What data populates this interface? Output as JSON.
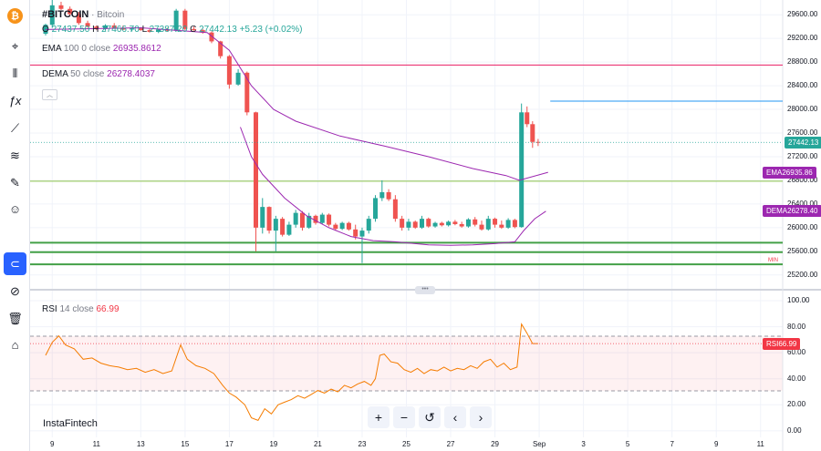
{
  "symbol": {
    "ticker": "#BITCOIN",
    "name": "Bitcoin"
  },
  "ohlc": {
    "o_label": "O",
    "o": "27437.50",
    "h_label": "H",
    "h": "27466.70",
    "l_label": "L",
    "l": "27387.20",
    "c_label": "C",
    "c": "27442.13",
    "change": "+5.23 (+0.02%)"
  },
  "ema": {
    "label": "EMA",
    "params": "100 0 close",
    "value": "26935.8612",
    "tag": "26935.86",
    "color": "#9c27b0"
  },
  "dema": {
    "label": "DEMA",
    "params": "50 close",
    "value": "26278.4037",
    "tag": "26278.40",
    "color": "#9c27b0"
  },
  "rsi": {
    "label": "RSI",
    "params": "14 close",
    "value": "66.99",
    "tag": "66.99",
    "color": "#f23645"
  },
  "price_tag": "27442.13",
  "min_label": "MIN",
  "brand": "InstaFintech",
  "collapse_icon": "chevron-up",
  "handle_icon": "drag-dots",
  "colors": {
    "up": "#26a69a",
    "down": "#ef5350",
    "pink_line": "#e91e63",
    "blue_line": "#2196f3",
    "green_level": "#43a047"
  },
  "nav_buttons": [
    "+",
    "−",
    "↺",
    "‹",
    "›"
  ],
  "toolbar_icons": [
    "bitcoin-icon",
    "cursor-icon",
    "candles-icon",
    "fx-icon",
    "trend-line-icon",
    "fib-icon",
    "brush-icon",
    "emoji-icon",
    "magnet-icon",
    "eye-off-icon",
    "trash-icon",
    "snapshot-icon"
  ],
  "chart_data": {
    "type": "candlestick",
    "price_axis": {
      "ticks": [
        "29600.00",
        "29200.00",
        "28800.00",
        "28400.00",
        "28000.00",
        "27600.00",
        "27200.00",
        "26800.00",
        "26400.00",
        "26000.00",
        "25600.00",
        "25200.00"
      ],
      "range": [
        24950,
        29850
      ]
    },
    "rsi_axis": {
      "ticks": [
        "100.00",
        "80.00",
        "60.00",
        "40.00",
        "20.00",
        "0.00"
      ],
      "range": [
        -5,
        107
      ],
      "upper_band": 70,
      "lower_band": 30
    },
    "x_axis": {
      "ticks": [
        "9",
        "11",
        "13",
        "15",
        "17",
        "19",
        "21",
        "23",
        "25",
        "27",
        "29",
        "Sep",
        "3",
        "5",
        "7",
        "9",
        "11"
      ]
    },
    "horizontal_levels": [
      {
        "price": 28750,
        "color": "#e91e63"
      },
      {
        "price": 26785,
        "color": "#8bc34a"
      },
      {
        "price": 25745,
        "color": "#43a047"
      },
      {
        "price": 25585,
        "color": "#43a047"
      },
      {
        "price": 25380,
        "color": "#43a047"
      }
    ],
    "blue_level": {
      "price": 28140,
      "from_x": 31.5
    },
    "candles": [
      [
        8.7,
        29280,
        29450,
        29250,
        29430
      ],
      [
        9.0,
        29430,
        29850,
        29380,
        29760
      ],
      [
        9.4,
        29760,
        29820,
        29680,
        29700
      ],
      [
        9.8,
        29700,
        29740,
        29580,
        29610
      ],
      [
        10.2,
        29610,
        29650,
        29430,
        29460
      ],
      [
        10.6,
        29460,
        29500,
        29380,
        29400
      ],
      [
        11.0,
        29400,
        29420,
        29340,
        29360
      ],
      [
        11.4,
        29360,
        29440,
        29330,
        29420
      ],
      [
        11.8,
        29420,
        29460,
        29370,
        29380
      ],
      [
        12.2,
        29380,
        29420,
        29340,
        29350
      ],
      [
        12.6,
        29350,
        29390,
        29320,
        29370
      ],
      [
        13.0,
        29370,
        29390,
        29330,
        29340
      ],
      [
        13.4,
        29340,
        29360,
        29300,
        29310
      ],
      [
        13.8,
        29310,
        29360,
        29290,
        29350
      ],
      [
        14.2,
        29350,
        29380,
        29320,
        29330
      ],
      [
        14.6,
        29330,
        29700,
        29320,
        29670
      ],
      [
        15.0,
        29670,
        29700,
        29340,
        29360
      ],
      [
        15.4,
        29360,
        29400,
        29330,
        29340
      ],
      [
        15.8,
        29340,
        29360,
        29280,
        29300
      ],
      [
        16.2,
        29300,
        29320,
        29120,
        29150
      ],
      [
        16.6,
        29150,
        29160,
        28860,
        28900
      ],
      [
        17.0,
        28900,
        28920,
        28350,
        28420
      ],
      [
        17.4,
        28420,
        28680,
        28400,
        28620
      ],
      [
        17.8,
        28620,
        28640,
        27900,
        27950
      ],
      [
        18.2,
        27950,
        27960,
        25600,
        26000
      ],
      [
        18.5,
        26000,
        26500,
        25900,
        26350
      ],
      [
        18.8,
        26350,
        26360,
        25900,
        25950
      ],
      [
        19.1,
        25950,
        26200,
        25600,
        26150
      ],
      [
        19.4,
        26150,
        26180,
        25850,
        25880
      ],
      [
        19.7,
        25880,
        26100,
        25860,
        26050
      ],
      [
        20.0,
        26050,
        26300,
        26000,
        26250
      ],
      [
        20.3,
        26250,
        26280,
        25950,
        26000
      ],
      [
        20.6,
        26000,
        26250,
        25980,
        26200
      ],
      [
        20.9,
        26200,
        26220,
        26050,
        26080
      ],
      [
        21.2,
        26080,
        26250,
        26060,
        26220
      ],
      [
        21.5,
        26220,
        26240,
        26020,
        26050
      ],
      [
        21.8,
        26050,
        26080,
        25950,
        25980
      ],
      [
        22.1,
        25980,
        26100,
        25960,
        26080
      ],
      [
        22.4,
        26080,
        26100,
        25950,
        25970
      ],
      [
        22.7,
        25970,
        26050,
        25800,
        25850
      ],
      [
        23.0,
        25850,
        26000,
        25400,
        25950
      ],
      [
        23.3,
        25950,
        26200,
        25900,
        26150
      ],
      [
        23.6,
        26150,
        26550,
        26100,
        26500
      ],
      [
        23.9,
        26500,
        26800,
        26450,
        26600
      ],
      [
        24.2,
        26600,
        26650,
        26450,
        26480
      ],
      [
        24.5,
        26480,
        26550,
        26100,
        26150
      ],
      [
        24.8,
        26150,
        26200,
        25950,
        26000
      ],
      [
        25.1,
        26000,
        26150,
        25950,
        26100
      ],
      [
        25.4,
        26100,
        26120,
        25980,
        26000
      ],
      [
        25.7,
        26000,
        26200,
        25980,
        26150
      ],
      [
        26.0,
        26150,
        26170,
        26000,
        26020
      ],
      [
        26.3,
        26020,
        26100,
        26000,
        26080
      ],
      [
        26.6,
        26080,
        26100,
        26020,
        26040
      ],
      [
        26.9,
        26040,
        26120,
        26020,
        26100
      ],
      [
        27.2,
        26100,
        26130,
        26040,
        26060
      ],
      [
        27.5,
        26060,
        26100,
        26000,
        26020
      ],
      [
        27.8,
        26020,
        26160,
        26000,
        26140
      ],
      [
        28.1,
        26140,
        26180,
        26020,
        26050
      ],
      [
        28.4,
        26050,
        26120,
        25950,
        25970
      ],
      [
        28.7,
        25970,
        26200,
        25950,
        26150
      ],
      [
        29.0,
        26150,
        26170,
        26000,
        26050
      ],
      [
        29.3,
        26050,
        26120,
        25980,
        26000
      ],
      [
        29.6,
        26000,
        26160,
        25980,
        26130
      ],
      [
        29.9,
        26130,
        26150,
        25990,
        26010
      ],
      [
        30.2,
        26010,
        28100,
        26000,
        27950
      ],
      [
        30.45,
        27950,
        28050,
        27700,
        27750
      ],
      [
        30.7,
        27750,
        27800,
        27350,
        27450
      ],
      [
        30.95,
        27450,
        27500,
        27380,
        27442
      ]
    ],
    "ema_line": [
      [
        8.7,
        29350
      ],
      [
        13,
        29380
      ],
      [
        16,
        29300
      ],
      [
        17,
        29000
      ],
      [
        18,
        28400
      ],
      [
        19,
        28000
      ],
      [
        20,
        27800
      ],
      [
        22,
        27550
      ],
      [
        24,
        27380
      ],
      [
        26,
        27200
      ],
      [
        28,
        27000
      ],
      [
        29.5,
        26880
      ],
      [
        30.1,
        26800
      ],
      [
        31.4,
        26936
      ]
    ],
    "dema_line": [
      [
        17.5,
        27700
      ],
      [
        18,
        27200
      ],
      [
        18.5,
        26900
      ],
      [
        19.5,
        26500
      ],
      [
        20.5,
        26200
      ],
      [
        21.5,
        26000
      ],
      [
        22.5,
        25850
      ],
      [
        23.5,
        25780
      ],
      [
        24.5,
        25760
      ],
      [
        26,
        25710
      ],
      [
        27,
        25700
      ],
      [
        28,
        25710
      ],
      [
        29,
        25730
      ],
      [
        29.9,
        25760
      ],
      [
        30.3,
        25950
      ],
      [
        30.8,
        26150
      ],
      [
        31.3,
        26278
      ]
    ],
    "rsi_line": [
      [
        8.7,
        58
      ],
      [
        9.0,
        68
      ],
      [
        9.3,
        73
      ],
      [
        9.6,
        66
      ],
      [
        10,
        63
      ],
      [
        10.4,
        55
      ],
      [
        10.8,
        56
      ],
      [
        11.2,
        52
      ],
      [
        11.6,
        50
      ],
      [
        12,
        49
      ],
      [
        12.4,
        47
      ],
      [
        12.8,
        48
      ],
      [
        13.2,
        45
      ],
      [
        13.6,
        47
      ],
      [
        14,
        44
      ],
      [
        14.4,
        46
      ],
      [
        14.8,
        66
      ],
      [
        15.1,
        55
      ],
      [
        15.5,
        50
      ],
      [
        15.9,
        48
      ],
      [
        16.3,
        44
      ],
      [
        16.7,
        35
      ],
      [
        17.0,
        29
      ],
      [
        17.3,
        26
      ],
      [
        17.7,
        20
      ],
      [
        18.0,
        10
      ],
      [
        18.3,
        8
      ],
      [
        18.6,
        17
      ],
      [
        18.9,
        13
      ],
      [
        19.2,
        20
      ],
      [
        19.5,
        22
      ],
      [
        19.8,
        24
      ],
      [
        20.1,
        27
      ],
      [
        20.4,
        25
      ],
      [
        20.7,
        28
      ],
      [
        21,
        31
      ],
      [
        21.3,
        29
      ],
      [
        21.6,
        32
      ],
      [
        21.9,
        30
      ],
      [
        22.2,
        35
      ],
      [
        22.5,
        33
      ],
      [
        22.8,
        36
      ],
      [
        23.1,
        38
      ],
      [
        23.4,
        35
      ],
      [
        23.6,
        40
      ],
      [
        23.8,
        58
      ],
      [
        24.0,
        59
      ],
      [
        24.3,
        53
      ],
      [
        24.6,
        52
      ],
      [
        24.9,
        47
      ],
      [
        25.2,
        45
      ],
      [
        25.5,
        48
      ],
      [
        25.8,
        44
      ],
      [
        26.1,
        47
      ],
      [
        26.4,
        46
      ],
      [
        26.7,
        49
      ],
      [
        27,
        46
      ],
      [
        27.3,
        48
      ],
      [
        27.6,
        47
      ],
      [
        27.9,
        50
      ],
      [
        28.2,
        48
      ],
      [
        28.5,
        53
      ],
      [
        28.8,
        55
      ],
      [
        29.1,
        49
      ],
      [
        29.4,
        52
      ],
      [
        29.7,
        47
      ],
      [
        30.0,
        49
      ],
      [
        30.2,
        82
      ],
      [
        30.45,
        75
      ],
      [
        30.7,
        67
      ],
      [
        30.95,
        67
      ]
    ]
  }
}
